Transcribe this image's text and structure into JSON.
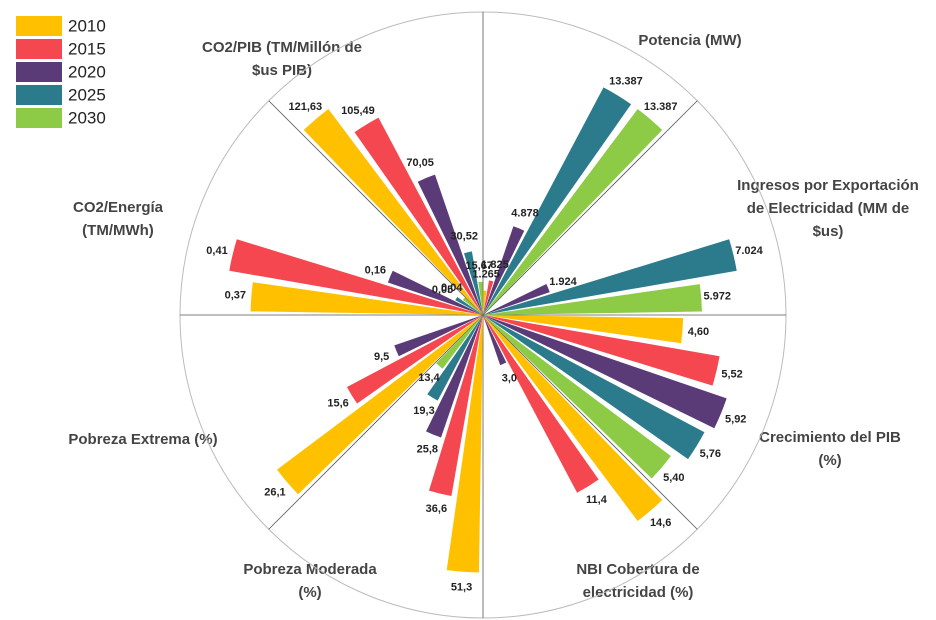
{
  "chart_data": {
    "type": "radial_bar",
    "categories": [
      [
        "Potencia (MW)"
      ],
      [
        "Ingresos por Exportación",
        "de Electricidad (MM de",
        "$us)"
      ],
      [
        "Crecimiento del PIB",
        "(%)"
      ],
      [
        "NBI Cobertura de",
        "electricidad (%)"
      ],
      [
        "Pobreza Moderada",
        "(%)"
      ],
      [
        "Pobreza Extrema (%)"
      ],
      [
        "CO2/Energía",
        "(TM/MWh)"
      ],
      [
        "CO2/PIB  (TM/Millón de",
        "$us PIB)"
      ]
    ],
    "series": [
      {
        "name": "2010",
        "color": "#ffc000",
        "values": [
          1265,
          null,
          4.6,
          14.6,
          51.3,
          26.1,
          0.37,
          121.63
        ],
        "value_labels": [
          "1.265",
          null,
          "4,60",
          "14,6",
          "51,3",
          "26,1",
          "0,37",
          "121,63"
        ]
      },
      {
        "name": "2015",
        "color": "#f4474f",
        "values": [
          1825,
          null,
          5.52,
          11.4,
          36.6,
          15.6,
          0.41,
          105.49
        ],
        "value_labels": [
          "1.825",
          null,
          "5,52",
          "11,4",
          "36,6",
          "15,6",
          "0,41",
          "105,49"
        ]
      },
      {
        "name": "2020",
        "color": "#5a3b78",
        "values": [
          4878,
          1924,
          5.92,
          3.0,
          25.8,
          9.5,
          0.16,
          70.05
        ],
        "value_labels": [
          "4.878",
          "1.924",
          "5,92",
          "3,0",
          "25,8",
          "9,5",
          "0,16",
          "70,05"
        ]
      },
      {
        "name": "2025",
        "color": "#2b7b8c",
        "values": [
          13387,
          7024,
          5.76,
          null,
          19.3,
          null,
          0.05,
          30.52
        ],
        "value_labels": [
          "13.387",
          "7.024",
          "5,76",
          null,
          "19,3",
          null,
          "0,05",
          "30,52"
        ]
      },
      {
        "name": "2030",
        "color": "#8dcb47",
        "values": [
          13387,
          5972,
          5.4,
          null,
          13.4,
          null,
          0.04,
          15.67
        ],
        "value_labels": [
          "13.387",
          "5.972",
          "5,40",
          null,
          "13,4",
          null,
          "0,04",
          "15,67"
        ]
      }
    ]
  }
}
